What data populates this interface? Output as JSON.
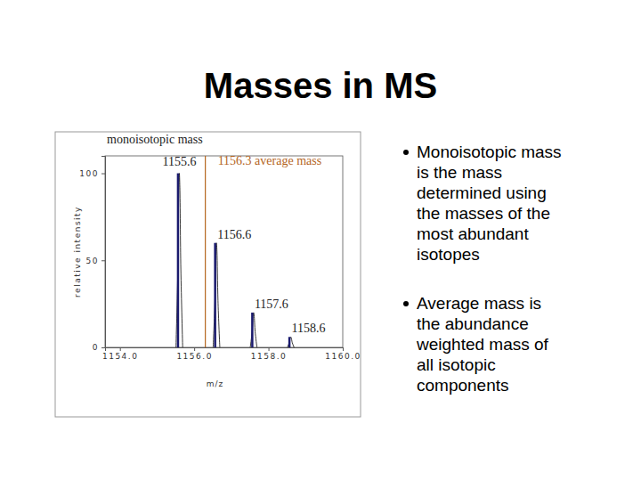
{
  "slide": {
    "title": "Masses in MS",
    "bullets": [
      [
        "Monoisotopic mass",
        "is the mass",
        "determined using",
        "the masses of the",
        "most abundant",
        "isotopes"
      ],
      [
        "Average mass is",
        "the abundance",
        "weighted mass of",
        "all isotopic",
        "components"
      ]
    ]
  },
  "chart_data": {
    "type": "spectrum",
    "title": "monoisotopic mass",
    "x_label": "m/z",
    "y_label": "relative intensity",
    "x": [
      1155.6,
      1156.6,
      1157.6,
      1158.6
    ],
    "values": [
      100,
      60,
      20,
      6
    ],
    "xlim": [
      1153.6,
      1160
    ],
    "xticks": [
      {
        "value": 1154,
        "label": "1154.0"
      },
      {
        "value": 1156,
        "label": "1156.0"
      },
      {
        "value": 1158,
        "label": "1158.0"
      },
      {
        "value": 1160,
        "label": "1160.0"
      }
    ],
    "ylim": [
      0,
      110
    ],
    "yticks": [
      0,
      50,
      100
    ],
    "annotations": [
      {
        "text": "1156.3 average mass",
        "x": 1156.3
      }
    ]
  }
}
